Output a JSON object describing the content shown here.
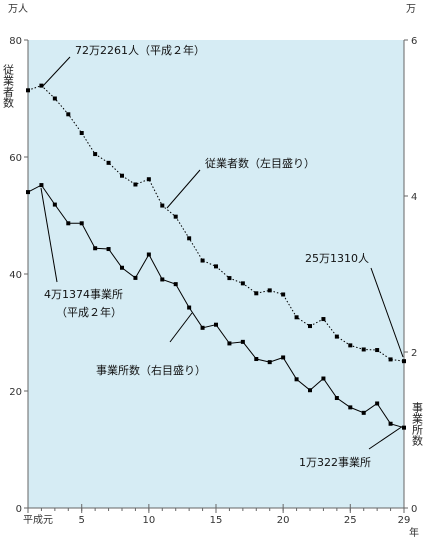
{
  "chart_data": {
    "type": "line",
    "title": "",
    "colors": {
      "plot_bg": "#d6ecf4",
      "line": "#000000",
      "marker": "#000000"
    },
    "x_axis": {
      "range": [
        1,
        29
      ],
      "tick_values": [
        1,
        5,
        10,
        15,
        20,
        25,
        29
      ],
      "tick_labels": [
        "平成元",
        "5",
        "10",
        "15",
        "20",
        "25",
        "29"
      ],
      "unit_label": "年"
    },
    "y_left": {
      "range": [
        0,
        80
      ],
      "ticks": [
        "0",
        "20",
        "40",
        "60",
        "80"
      ],
      "unit_label": "万人",
      "axis_label": "従業者数"
    },
    "y_right": {
      "range": [
        0,
        6
      ],
      "ticks": [
        "0",
        "2",
        "4",
        "6"
      ],
      "unit_label": "万",
      "axis_label": "事業所数"
    },
    "x": [
      1,
      2,
      3,
      4,
      5,
      6,
      7,
      8,
      9,
      10,
      11,
      12,
      13,
      14,
      15,
      16,
      17,
      18,
      19,
      20,
      21,
      22,
      23,
      24,
      25,
      26,
      27,
      28,
      29
    ],
    "series": [
      {
        "name": "従業者数（左目盛り）",
        "axis": "left",
        "style": "dotted",
        "marker": "square",
        "values": [
          71.4,
          72.2,
          70.0,
          67.3,
          64.1,
          60.5,
          59.0,
          56.8,
          55.3,
          56.2,
          51.7,
          49.8,
          46.1,
          42.3,
          41.3,
          39.3,
          38.4,
          36.7,
          37.2,
          36.5,
          32.6,
          31.1,
          32.3,
          29.3,
          27.8,
          27.1,
          27.0,
          25.4,
          25.1
        ]
      },
      {
        "name": "事業所数（右目盛り）",
        "axis": "right",
        "style": "solid",
        "marker": "square",
        "values": [
          4.05,
          4.14,
          3.89,
          3.65,
          3.65,
          3.33,
          3.32,
          3.08,
          2.95,
          3.25,
          2.93,
          2.87,
          2.57,
          2.31,
          2.35,
          2.11,
          2.13,
          1.91,
          1.87,
          1.93,
          1.65,
          1.51,
          1.66,
          1.41,
          1.29,
          1.22,
          1.34,
          1.08,
          1.03
        ]
      }
    ],
    "annotations": [
      {
        "id": "emp-start",
        "text": "72万2261人（平成２年）"
      },
      {
        "id": "emp-series",
        "text": "従業者数（左目盛り）"
      },
      {
        "id": "emp-end",
        "text": "25万1310人"
      },
      {
        "id": "est-start-1",
        "text": "4万1374事業所"
      },
      {
        "id": "est-start-2",
        "text": "（平成２年）"
      },
      {
        "id": "est-series",
        "text": "事業所数（右目盛り）"
      },
      {
        "id": "est-end",
        "text": "1万322事業所"
      }
    ]
  }
}
